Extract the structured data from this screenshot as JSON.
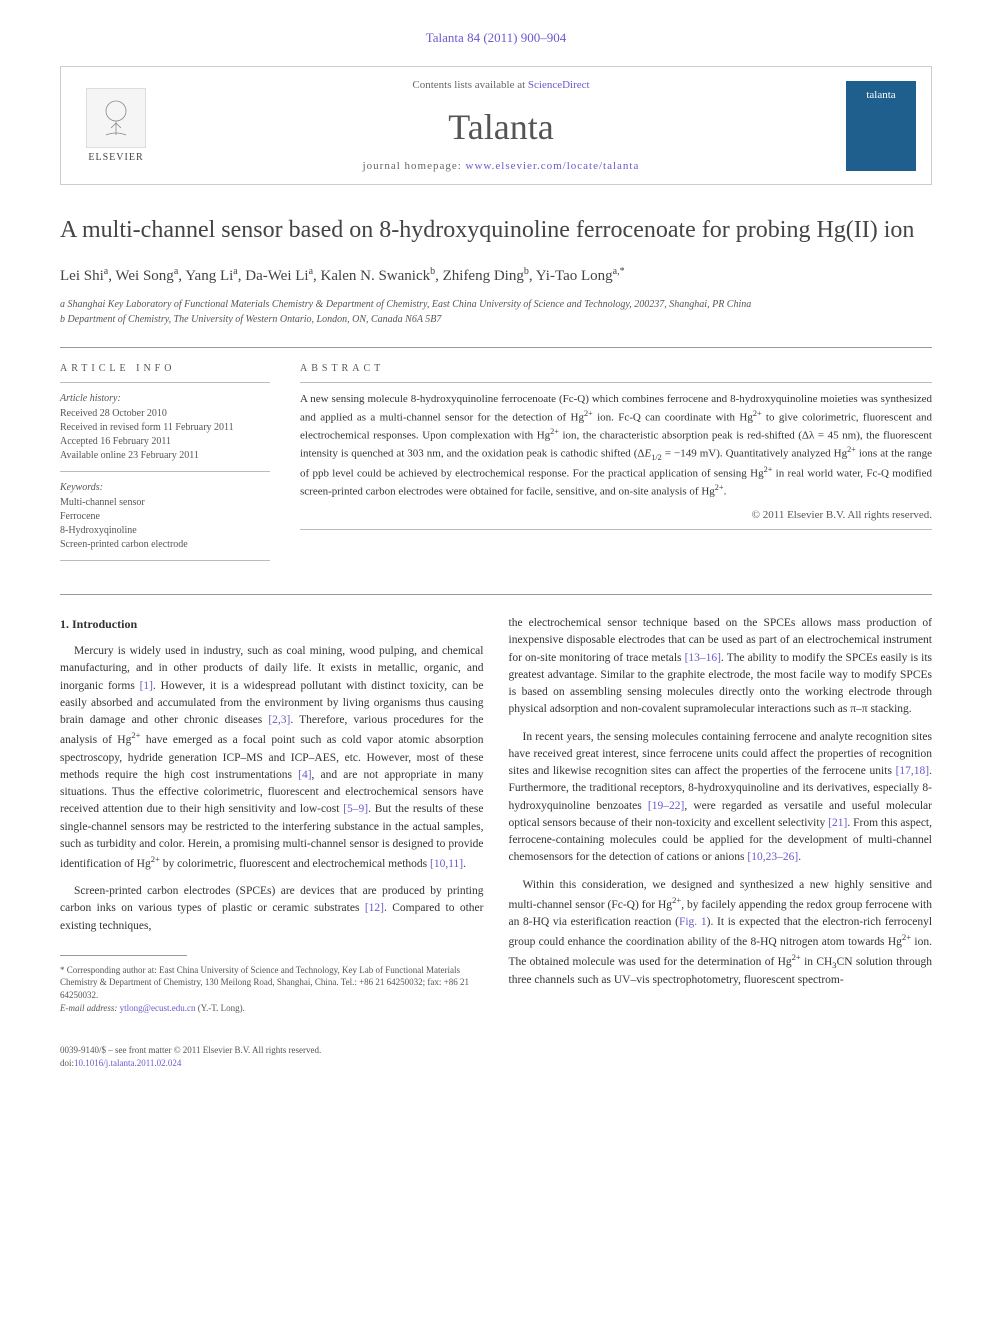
{
  "header": {
    "citation": "Talanta 84 (2011) 900–904",
    "contents_prefix": "Contents lists available at ",
    "contents_link": "ScienceDirect",
    "journal_name": "Talanta",
    "homepage_prefix": "journal homepage: ",
    "homepage_url": "www.elsevier.com/locate/talanta",
    "elsevier_label": "ELSEVIER",
    "cover_text": "talanta"
  },
  "article": {
    "title": "A multi-channel sensor based on 8-hydroxyquinoline ferrocenoate for probing Hg(II) ion",
    "authors_html": "Lei Shi<sup>a</sup>, Wei Song<sup>a</sup>, Yang Li<sup>a</sup>, Da-Wei Li<sup>a</sup>, Kalen N. Swanick<sup>b</sup>, Zhifeng Ding<sup>b</sup>, Yi-Tao Long<sup>a,*</sup>",
    "affiliations": [
      "a Shanghai Key Laboratory of Functional Materials Chemistry & Department of Chemistry, East China University of Science and Technology, 200237, Shanghai, PR China",
      "b Department of Chemistry, The University of Western Ontario, London, ON, Canada N6A 5B7"
    ]
  },
  "info": {
    "heading": "ARTICLE INFO",
    "history_label": "Article history:",
    "history": [
      "Received 28 October 2010",
      "Received in revised form 11 February 2011",
      "Accepted 16 February 2011",
      "Available online 23 February 2011"
    ],
    "keywords_label": "Keywords:",
    "keywords": [
      "Multi-channel sensor",
      "Ferrocene",
      "8-Hydroxyqinoline",
      "Screen-printed carbon electrode"
    ]
  },
  "abstract": {
    "heading": "ABSTRACT",
    "text": "A new sensing molecule 8-hydroxyquinoline ferrocenoate (Fc-Q) which combines ferrocene and 8-hydroxyquinoline moieties was synthesized and applied as a multi-channel sensor for the detection of Hg2+ ion. Fc-Q can coordinate with Hg2+ to give colorimetric, fluorescent and electrochemical responses. Upon complexation with Hg2+ ion, the characteristic absorption peak is red-shifted (Δλ = 45 nm), the fluorescent intensity is quenched at 303 nm, and the oxidation peak is cathodic shifted (ΔE1/2 = −149 mV). Quantitatively analyzed Hg2+ ions at the range of ppb level could be achieved by electrochemical response. For the practical application of sensing Hg2+ in real world water, Fc-Q modified screen-printed carbon electrodes were obtained for facile, sensitive, and on-site analysis of Hg2+.",
    "copyright": "© 2011 Elsevier B.V. All rights reserved."
  },
  "body": {
    "section1_heading": "1. Introduction",
    "col1_paras": [
      "Mercury is widely used in industry, such as coal mining, wood pulping, and chemical manufacturing, and in other products of daily life. It exists in metallic, organic, and inorganic forms [1]. However, it is a widespread pollutant with distinct toxicity, can be easily absorbed and accumulated from the environment by living organisms thus causing brain damage and other chronic diseases [2,3]. Therefore, various procedures for the analysis of Hg2+ have emerged as a focal point such as cold vapor atomic absorption spectroscopy, hydride generation ICP–MS and ICP–AES, etc. However, most of these methods require the high cost instrumentations [4], and are not appropriate in many situations. Thus the effective colorimetric, fluorescent and electrochemical sensors have received attention due to their high sensitivity and low-cost [5–9]. But the results of these single-channel sensors may be restricted to the interfering substance in the actual samples, such as turbidity and color. Herein, a promising multi-channel sensor is designed to provide identification of Hg2+ by colorimetric, fluorescent and electrochemical methods [10,11].",
      "Screen-printed carbon electrodes (SPCEs) are devices that are produced by printing carbon inks on various types of plastic or ceramic substrates [12]. Compared to other existing techniques,"
    ],
    "col2_paras": [
      "the electrochemical sensor technique based on the SPCEs allows mass production of inexpensive disposable electrodes that can be used as part of an electrochemical instrument for on-site monitoring of trace metals [13–16]. The ability to modify the SPCEs easily is its greatest advantage. Similar to the graphite electrode, the most facile way to modify SPCEs is based on assembling sensing molecules directly onto the working electrode through physical adsorption and non-covalent supramolecular interactions such as π–π stacking.",
      "In recent years, the sensing molecules containing ferrocene and analyte recognition sites have received great interest, since ferrocene units could affect the properties of recognition sites and likewise recognition sites can affect the properties of the ferrocene units [17,18]. Furthermore, the traditional receptors, 8-hydroxyquinoline and its derivatives, especially 8-hydroxyquinoline benzoates [19–22], were regarded as versatile and useful molecular optical sensors because of their non-toxicity and excellent selectivity [21]. From this aspect, ferrocene-containing molecules could be applied for the development of multi-channel chemosensors for the detection of cations or anions [10,23–26].",
      "Within this consideration, we designed and synthesized a new highly sensitive and multi-channel sensor (Fc-Q) for Hg2+, by facilely appending the redox group ferrocene with an 8-HQ via esterification reaction (Fig. 1). It is expected that the electron-rich ferrocenyl group could enhance the coordination ability of the 8-HQ nitrogen atom towards Hg2+ ion. The obtained molecule was used for the determination of Hg2+ in CH3CN solution through three channels such as UV–vis spectrophotometry, fluorescent spectrom-"
    ],
    "footnote_corresponding": "* Corresponding author at: East China University of Science and Technology, Key Lab of Functional Materials Chemistry & Department of Chemistry, 130 Meilong Road, Shanghai, China. Tel.: +86 21 64250032; fax: +86 21 64250032.",
    "footnote_email_label": "E-mail address:",
    "footnote_email": "ytlong@ecust.edu.cn",
    "footnote_email_suffix": "(Y.-T. Long)."
  },
  "footer": {
    "line1": "0039-9140/$ – see front matter © 2011 Elsevier B.V. All rights reserved.",
    "doi_prefix": "doi:",
    "doi": "10.1016/j.talanta.2011.02.024"
  },
  "colors": {
    "link": "#6a5acd",
    "text": "#333333",
    "muted": "#555555",
    "border": "#999999",
    "cover_bg": "#1e5f8e"
  },
  "typography": {
    "title_fontsize": 24,
    "journal_fontsize": 36,
    "body_fontsize": 11.5,
    "abstract_fontsize": 11,
    "info_fontsize": 10,
    "footnote_fontsize": 9
  }
}
